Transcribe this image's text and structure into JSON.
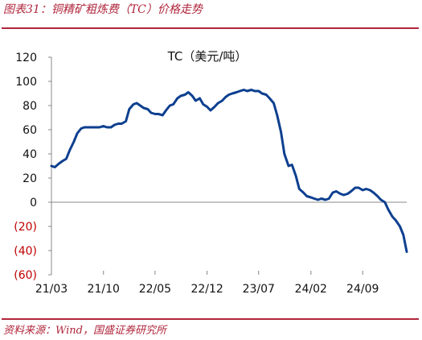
{
  "figure": {
    "title": "图表31：铜精矿粗炼费（TC）价格走势",
    "source": "资料来源：Wind，国盛证券研究所"
  },
  "colors": {
    "accent": "#b0263c",
    "line": "#0d3f8f",
    "negative": "#c00000"
  },
  "chart_data": {
    "type": "line",
    "title": "TC（美元/吨）",
    "xlabel": "",
    "ylabel": "",
    "ylim": [
      -60,
      120
    ],
    "yticks": [
      120,
      100,
      80,
      60,
      40,
      20,
      0,
      -20,
      -40,
      -60
    ],
    "ytick_labels": [
      "120",
      "100",
      "80",
      "60",
      "40",
      "20",
      "0",
      "(20)",
      "(40)",
      "(60)"
    ],
    "xticks": [
      "2021-03",
      "2021-10",
      "2022-05",
      "2022-12",
      "2023-07",
      "2024-02",
      "2024-09"
    ],
    "xtick_labels": [
      "21/03",
      "21/10",
      "22/05",
      "22/12",
      "23/07",
      "24/02",
      "24/09"
    ],
    "x_start": "2021-03",
    "x_end": "2025-03",
    "grid": false,
    "legend": "none",
    "series": [
      {
        "name": "",
        "x": [
          "2021-03-01",
          "2021-03-15",
          "2021-04-01",
          "2021-04-15",
          "2021-05-01",
          "2021-05-15",
          "2021-06-01",
          "2021-06-15",
          "2021-07-01",
          "2021-07-15",
          "2021-08-01",
          "2021-08-15",
          "2021-09-01",
          "2021-09-15",
          "2021-10-01",
          "2021-10-15",
          "2021-11-01",
          "2021-11-15",
          "2021-12-01",
          "2021-12-15",
          "2022-01-01",
          "2022-01-15",
          "2022-02-01",
          "2022-02-15",
          "2022-03-01",
          "2022-03-15",
          "2022-04-01",
          "2022-04-15",
          "2022-05-01",
          "2022-05-15",
          "2022-06-01",
          "2022-06-15",
          "2022-07-01",
          "2022-07-15",
          "2022-08-01",
          "2022-08-15",
          "2022-09-01",
          "2022-09-15",
          "2022-10-01",
          "2022-10-15",
          "2022-11-01",
          "2022-11-15",
          "2022-12-01",
          "2022-12-15",
          "2023-01-01",
          "2023-01-15",
          "2023-02-01",
          "2023-02-15",
          "2023-03-01",
          "2023-03-15",
          "2023-04-01",
          "2023-04-15",
          "2023-05-01",
          "2023-05-15",
          "2023-06-01",
          "2023-06-15",
          "2023-07-01",
          "2023-07-15",
          "2023-08-01",
          "2023-08-15",
          "2023-09-01",
          "2023-09-15",
          "2023-10-01",
          "2023-10-15",
          "2023-11-01",
          "2023-11-15",
          "2023-12-01",
          "2023-12-15",
          "2024-01-01",
          "2024-01-15",
          "2024-02-01",
          "2024-02-15",
          "2024-03-01",
          "2024-03-15",
          "2024-04-01",
          "2024-04-15",
          "2024-05-01",
          "2024-05-15",
          "2024-06-01",
          "2024-06-15",
          "2024-07-01",
          "2024-07-15",
          "2024-08-01",
          "2024-08-15",
          "2024-09-01",
          "2024-09-15",
          "2024-10-01",
          "2024-10-15",
          "2024-11-01",
          "2024-11-15",
          "2024-12-01",
          "2024-12-15",
          "2025-01-01",
          "2025-01-15",
          "2025-02-01",
          "2025-02-15",
          "2025-03-01"
        ],
        "values": [
          30,
          29,
          32,
          34,
          36,
          43,
          50,
          57,
          61,
          62,
          62,
          62,
          62,
          62,
          63,
          62,
          62,
          64,
          65,
          65,
          67,
          77,
          81,
          82,
          80,
          78,
          77,
          74,
          73,
          73,
          72,
          76,
          80,
          81,
          86,
          88,
          89,
          91,
          88,
          84,
          86,
          81,
          79,
          76,
          79,
          82,
          84,
          87,
          89,
          90,
          91,
          92,
          93,
          92,
          93,
          92,
          92,
          90,
          89,
          86,
          82,
          72,
          58,
          40,
          30,
          31,
          22,
          11,
          8,
          5,
          4,
          3,
          2,
          3,
          2,
          3,
          8,
          9,
          7,
          6,
          7,
          9,
          12,
          12,
          10,
          11,
          10,
          8,
          5,
          2,
          0,
          -6,
          -12,
          -15,
          -20,
          -27,
          -41
        ]
      }
    ]
  }
}
